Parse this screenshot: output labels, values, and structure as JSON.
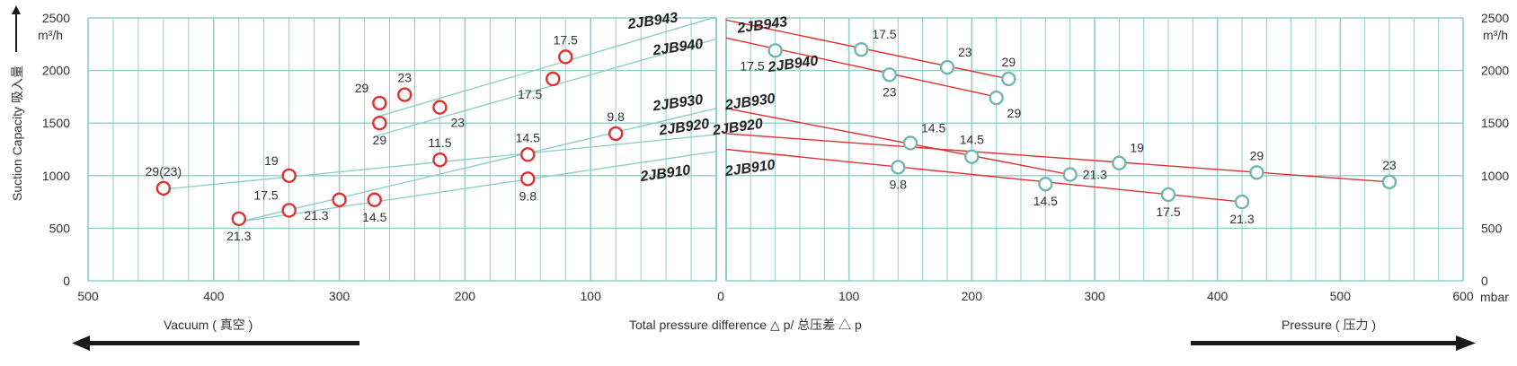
{
  "chart_data": [
    {
      "type": "line",
      "side": "vacuum",
      "x_axis_reversed": true,
      "xlim": [
        0,
        500
      ],
      "ylim": [
        0,
        2500
      ],
      "x_ticks": [
        500,
        400,
        300,
        200,
        100,
        0
      ],
      "y_ticks": [
        0,
        500,
        1000,
        1500,
        2000,
        2500
      ],
      "y_unit": "m³/h",
      "ylabel": "Suction Capacity 吸入量",
      "series": [
        {
          "name": "2JB943",
          "line": [
            [
              270,
              1560
            ],
            [
              0,
              2510
            ]
          ],
          "label_pos": [
            50,
            2430
          ]
        },
        {
          "name": "2JB940",
          "line": [
            [
              270,
              1380
            ],
            [
              0,
              2300
            ]
          ],
          "label_pos": [
            30,
            2180
          ]
        },
        {
          "name": "2JB930",
          "line": [
            [
              380,
              560
            ],
            [
              0,
              1640
            ]
          ],
          "label_pos": [
            30,
            1650
          ]
        },
        {
          "name": "2JB920",
          "line": [
            [
              440,
              870
            ],
            [
              0,
              1390
            ]
          ],
          "label_pos": [
            25,
            1420
          ]
        },
        {
          "name": "2JB910",
          "line": [
            [
              380,
              560
            ],
            [
              0,
              1230
            ]
          ],
          "label_pos": [
            40,
            980
          ]
        }
      ],
      "points": [
        {
          "x": 440,
          "y": 880,
          "label": "29(23)",
          "label_pos": "above"
        },
        {
          "x": 380,
          "y": 590,
          "label": "21.3",
          "label_pos": "below"
        },
        {
          "x": 340,
          "y": 1000,
          "label": "19",
          "label_pos": "above-left"
        },
        {
          "x": 340,
          "y": 670,
          "label": "17.5",
          "label_pos": "above-left"
        },
        {
          "x": 300,
          "y": 770,
          "label": "21.3",
          "label_pos": "below-left"
        },
        {
          "x": 272,
          "y": 770,
          "label": "14.5",
          "label_pos": "below"
        },
        {
          "x": 268,
          "y": 1690,
          "label": "29",
          "label_pos": "above-left"
        },
        {
          "x": 268,
          "y": 1500,
          "label": "29",
          "label_pos": "below"
        },
        {
          "x": 248,
          "y": 1770,
          "label": "23",
          "label_pos": "above"
        },
        {
          "x": 220,
          "y": 1650,
          "label": "23",
          "label_pos": "below-right"
        },
        {
          "x": 220,
          "y": 1150,
          "label": "11.5",
          "label_pos": "above"
        },
        {
          "x": 150,
          "y": 1200,
          "label": "14.5",
          "label_pos": "above"
        },
        {
          "x": 150,
          "y": 970,
          "label": "9.8",
          "label_pos": "below"
        },
        {
          "x": 130,
          "y": 1920,
          "label": "17.5",
          "label_pos": "below-left"
        },
        {
          "x": 120,
          "y": 2130,
          "label": "17.5",
          "label_pos": "above"
        },
        {
          "x": 80,
          "y": 1400,
          "label": "9.8",
          "label_pos": "above"
        }
      ]
    },
    {
      "type": "line",
      "side": "pressure",
      "xlim": [
        0,
        600
      ],
      "ylim": [
        0,
        2500
      ],
      "x_ticks": [
        0,
        100,
        200,
        300,
        400,
        500,
        600
      ],
      "y_ticks": [
        0,
        500,
        1000,
        1500,
        2000,
        2500
      ],
      "x_unit": "mbar",
      "y_unit": "m³/h",
      "series": [
        {
          "name": "2JB943",
          "line": [
            [
              0,
              2480
            ],
            [
              230,
              1920
            ]
          ],
          "label_pos": [
            30,
            2390
          ]
        },
        {
          "name": "2JB940",
          "line": [
            [
              0,
              2310
            ],
            [
              220,
              1750
            ]
          ],
          "label_pos": [
            55,
            2020
          ]
        },
        {
          "name": "2JB930",
          "line": [
            [
              0,
              1640
            ],
            [
              280,
              1010
            ]
          ],
          "label_pos": [
            20,
            1660
          ]
        },
        {
          "name": "2JB920",
          "line": [
            [
              0,
              1400
            ],
            [
              540,
              940
            ]
          ],
          "label_pos": [
            10,
            1420
          ]
        },
        {
          "name": "2JB910",
          "line": [
            [
              0,
              1250
            ],
            [
              420,
              750
            ]
          ],
          "label_pos": [
            20,
            1030
          ]
        }
      ],
      "points": [
        {
          "x": 40,
          "y": 2190,
          "label": "17.5",
          "label_pos": "below-left"
        },
        {
          "x": 110,
          "y": 2200,
          "label": "17.5",
          "label_pos": "above-right"
        },
        {
          "x": 133,
          "y": 1960,
          "label": "23",
          "label_pos": "below"
        },
        {
          "x": 180,
          "y": 2030,
          "label": "23",
          "label_pos": "above-right"
        },
        {
          "x": 220,
          "y": 1740,
          "label": "29",
          "label_pos": "below-right"
        },
        {
          "x": 230,
          "y": 1920,
          "label": "29",
          "label_pos": "above"
        },
        {
          "x": 140,
          "y": 1080,
          "label": "9.8",
          "label_pos": "below"
        },
        {
          "x": 150,
          "y": 1310,
          "label": "14.5",
          "label_pos": "above-right"
        },
        {
          "x": 200,
          "y": 1180,
          "label": "14.5",
          "label_pos": "above"
        },
        {
          "x": 260,
          "y": 920,
          "label": "14.5",
          "label_pos": "below"
        },
        {
          "x": 280,
          "y": 1010,
          "label": "21.3",
          "label_pos": "right"
        },
        {
          "x": 320,
          "y": 1120,
          "label": "19",
          "label_pos": "above-right"
        },
        {
          "x": 360,
          "y": 820,
          "label": "17.5",
          "label_pos": "below"
        },
        {
          "x": 420,
          "y": 750,
          "label": "21.3",
          "label_pos": "below"
        },
        {
          "x": 432,
          "y": 1030,
          "label": "29",
          "label_pos": "above"
        },
        {
          "x": 540,
          "y": 940,
          "label": "23",
          "label_pos": "above"
        }
      ]
    }
  ],
  "labels": {
    "unit_left": "m³/h",
    "unit_right": "m³/h",
    "x_unit_right": "mbar",
    "vacuum": "Vacuum ( 真空 )",
    "pressure": "Pressure ( 压力 )",
    "xlabel": "Total pressure difference △ p/ 总压差 △ p"
  },
  "colors": {
    "grid": "#8fcfc7",
    "vac_line": "#8fcfc7",
    "vac_marker": "#e03030",
    "pres_line": "#e03030",
    "pres_marker": "#6fb7ae",
    "text": "#333333",
    "arrow": "#1a1a1a"
  }
}
